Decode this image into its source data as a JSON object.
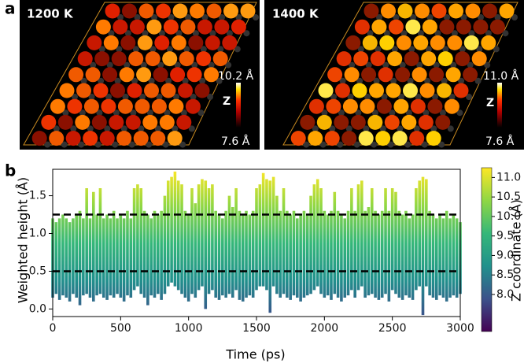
{
  "panel_a": {
    "label": "a",
    "images": [
      {
        "title": "1200 K",
        "zmax": "10.2 Å",
        "zlabel": "Z",
        "zmin": "7.6 Å"
      },
      {
        "title": "1400 K",
        "zmax": "11.0 Å",
        "zlabel": "Z",
        "zmin": "7.6 Å"
      }
    ]
  },
  "chart_data": {
    "type": "scatter",
    "label": "b",
    "xlabel": "Time (ps)",
    "ylabel": "Weighted height (Å)",
    "xlim": [
      0,
      3000
    ],
    "xticks": [
      0,
      500,
      1000,
      1500,
      2000,
      2500,
      3000
    ],
    "ylim": [
      -0.1,
      1.85
    ],
    "yticks": [
      {
        "value": 0,
        "label": "0.0"
      },
      {
        "value": 0.5,
        "label": "0.5"
      },
      {
        "value": 1,
        "label": "1.0"
      },
      {
        "value": 1.5,
        "label": "1.5"
      }
    ],
    "hlines": [
      0.5,
      1.25
    ],
    "x": [
      0,
      25,
      50,
      75,
      100,
      125,
      150,
      175,
      200,
      225,
      250,
      275,
      300,
      325,
      350,
      375,
      400,
      425,
      450,
      475,
      500,
      525,
      550,
      575,
      600,
      625,
      650,
      675,
      700,
      725,
      750,
      775,
      800,
      825,
      850,
      875,
      900,
      925,
      950,
      975,
      1000,
      1025,
      1050,
      1075,
      1100,
      1125,
      1150,
      1175,
      1200,
      1225,
      1250,
      1275,
      1300,
      1325,
      1350,
      1375,
      1400,
      1425,
      1450,
      1475,
      1500,
      1525,
      1550,
      1575,
      1600,
      1625,
      1650,
      1675,
      1700,
      1725,
      1750,
      1775,
      1800,
      1825,
      1850,
      1875,
      1900,
      1925,
      1950,
      1975,
      2000,
      2025,
      2050,
      2075,
      2100,
      2125,
      2150,
      2175,
      2200,
      2225,
      2250,
      2275,
      2300,
      2325,
      2350,
      2375,
      2400,
      2425,
      2450,
      2475,
      2500,
      2525,
      2550,
      2575,
      2600,
      2625,
      2650,
      2675,
      2700,
      2725,
      2750,
      2775,
      2800,
      2825,
      2850,
      2875,
      2900,
      2925,
      2950,
      2975,
      3000
    ],
    "values": [
      1.2,
      1.15,
      1.2,
      1.25,
      1.2,
      1.15,
      1.2,
      1.25,
      1.3,
      1.2,
      1.6,
      1.2,
      1.55,
      1.25,
      1.6,
      1.2,
      1.25,
      1.2,
      1.3,
      1.2,
      1.25,
      1.2,
      1.3,
      1.2,
      1.6,
      1.65,
      1.6,
      1.3,
      1.25,
      1.2,
      1.3,
      1.25,
      1.3,
      1.5,
      1.7,
      1.75,
      1.82,
      1.7,
      1.65,
      1.3,
      1.25,
      1.6,
      1.4,
      1.65,
      1.72,
      1.7,
      1.6,
      1.65,
      1.3,
      1.25,
      1.2,
      1.3,
      1.5,
      1.35,
      1.6,
      1.3,
      1.25,
      1.3,
      1.25,
      1.3,
      1.6,
      1.65,
      1.8,
      1.72,
      1.7,
      1.75,
      1.5,
      1.3,
      1.6,
      1.3,
      1.25,
      1.3,
      1.2,
      1.25,
      1.3,
      1.25,
      1.5,
      1.65,
      1.72,
      1.6,
      1.3,
      1.25,
      1.3,
      1.55,
      1.3,
      1.25,
      1.2,
      1.3,
      1.6,
      1.3,
      1.65,
      1.7,
      1.3,
      1.35,
      1.6,
      1.3,
      1.25,
      1.3,
      1.6,
      1.3,
      1.6,
      1.55,
      1.3,
      1.25,
      1.3,
      1.2,
      1.25,
      1.6,
      1.7,
      1.75,
      1.72,
      1.3,
      1.25,
      1.2,
      1.25,
      1.2,
      1.3,
      1.2,
      1.25,
      1.2,
      1.15
    ],
    "lows": [
      0.15,
      0.2,
      0.12,
      0.18,
      0.15,
      0.1,
      0.2,
      0.15,
      0.05,
      0.18,
      0.2,
      0.15,
      0.1,
      0.18,
      0.2,
      0.15,
      0.12,
      0.18,
      0.15,
      0.2,
      0.15,
      0.1,
      0.18,
      0.15,
      0.25,
      0.3,
      0.2,
      0.15,
      0.05,
      0.18,
      0.15,
      0.2,
      0.12,
      0.2,
      0.3,
      0.35,
      0.3,
      0.25,
      0.2,
      0.15,
      0.1,
      0.2,
      0.15,
      0.25,
      0.3,
      0.0,
      0.2,
      0.25,
      0.15,
      0.12,
      0.18,
      0.15,
      0.2,
      0.15,
      0.25,
      0.12,
      0.1,
      0.15,
      0.18,
      0.15,
      0.25,
      0.3,
      0.3,
      0.25,
      -0.05,
      0.3,
      0.2,
      0.15,
      0.2,
      0.15,
      0.12,
      0.18,
      0.15,
      0.1,
      0.15,
      0.18,
      0.2,
      0.25,
      0.3,
      0.2,
      0.15,
      0.18,
      0.12,
      0.2,
      0.15,
      0.1,
      0.15,
      0.18,
      0.25,
      0.15,
      0.25,
      0.3,
      0.15,
      0.18,
      0.2,
      0.15,
      0.12,
      0.15,
      0.2,
      0.1,
      0.25,
      0.2,
      0.15,
      0.12,
      0.18,
      0.15,
      0.12,
      0.25,
      0.3,
      -0.08,
      0.3,
      0.18,
      0.15,
      0.12,
      0.18,
      0.15,
      0.1,
      0.15,
      0.18,
      0.15,
      0.2
    ],
    "colorbar": {
      "label": "Z coordinate (Å)",
      "lim": [
        7.05,
        11.25
      ],
      "ticks": [
        {
          "value": 8,
          "label": "8.0"
        },
        {
          "value": 8.5,
          "label": "8.5"
        },
        {
          "value": 9,
          "label": "9.0"
        },
        {
          "value": 9.5,
          "label": "9.5"
        },
        {
          "value": 10,
          "label": "10.0"
        },
        {
          "value": 10.5,
          "label": "10.5"
        },
        {
          "value": 11,
          "label": "11.0"
        }
      ],
      "colormap": [
        "#440154",
        "#3b528b",
        "#21918c",
        "#35b779",
        "#8fd744",
        "#fde725"
      ]
    }
  }
}
